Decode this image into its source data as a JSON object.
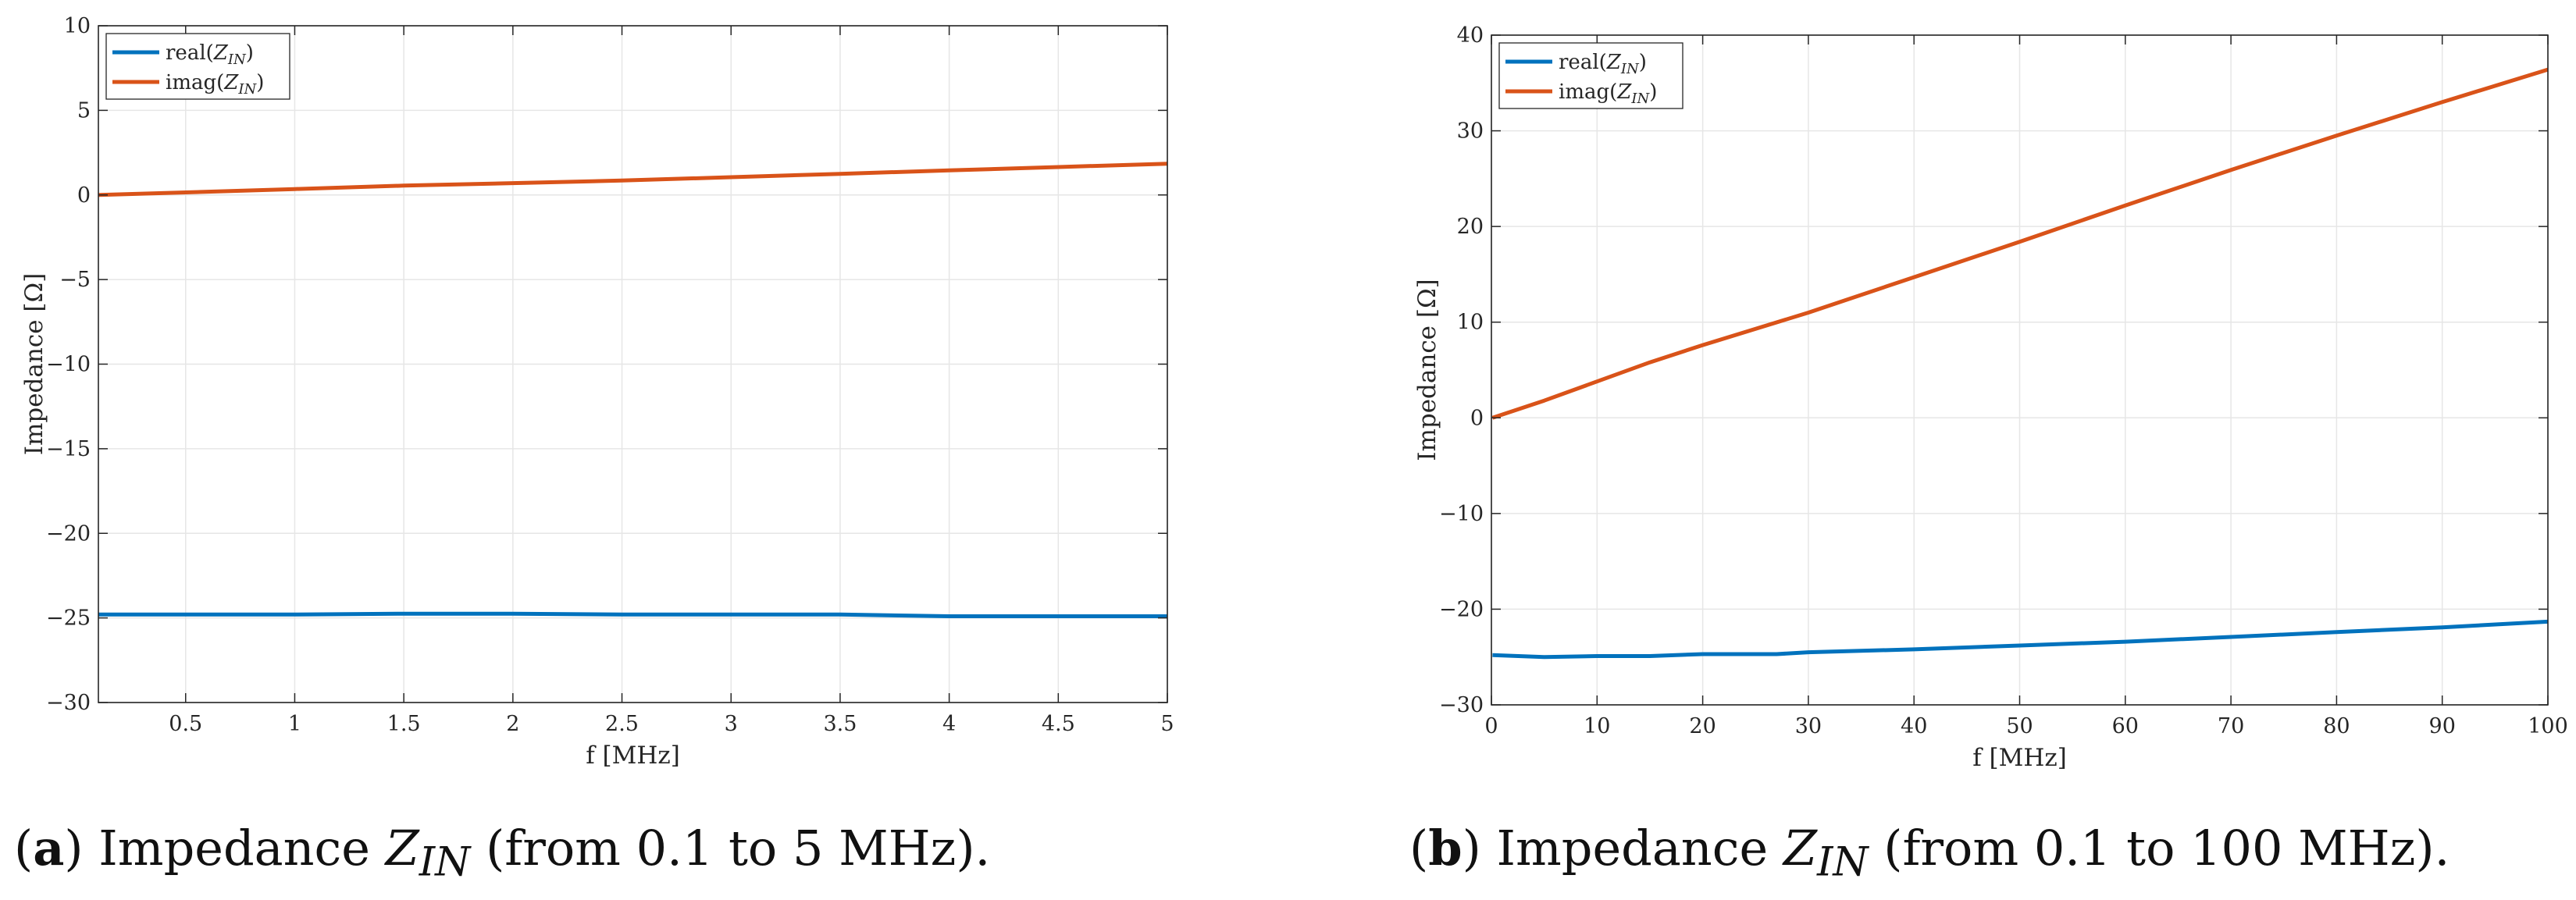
{
  "chart_data": [
    {
      "type": "line",
      "id": "a",
      "xlabel": "f [MHz]",
      "ylabel": "Impedance [Ω]",
      "xlim": [
        0.1,
        5
      ],
      "ylim": [
        -30,
        10
      ],
      "xticks": [
        0.5,
        1,
        1.5,
        2,
        2.5,
        3,
        3.5,
        4,
        4.5,
        5
      ],
      "xtick_labels": [
        "0.5",
        "1",
        "1.5",
        "2",
        "2.5",
        "3",
        "3.5",
        "4",
        "4.5",
        "5"
      ],
      "yticks": [
        -30,
        -25,
        -20,
        -15,
        -10,
        -5,
        0,
        5,
        10
      ],
      "ytick_labels": [
        "−30",
        "−25",
        "−20",
        "−15",
        "−10",
        "−5",
        "0",
        "5",
        "10"
      ],
      "grid": true,
      "legend_position": "top-left",
      "series": [
        {
          "name": "real(Z_IN)",
          "label_prefix": "real(",
          "label_var": "Z",
          "label_sub": "IN",
          "label_suffix": ")",
          "color": "#0072BD",
          "x": [
            0.1,
            0.5,
            1,
            1.5,
            2,
            2.5,
            3,
            3.5,
            4,
            4.5,
            5
          ],
          "y": [
            -24.8,
            -24.8,
            -24.8,
            -24.75,
            -24.75,
            -24.8,
            -24.8,
            -24.8,
            -24.9,
            -24.9,
            -24.9
          ]
        },
        {
          "name": "imag(Z_IN)",
          "label_prefix": "imag(",
          "label_var": "Z",
          "label_sub": "IN",
          "label_suffix": ")",
          "color": "#D95319",
          "x": [
            0.1,
            0.5,
            1,
            1.5,
            2,
            2.5,
            3,
            3.5,
            4,
            4.5,
            5
          ],
          "y": [
            0.0,
            0.15,
            0.35,
            0.55,
            0.7,
            0.85,
            1.05,
            1.25,
            1.45,
            1.65,
            1.85
          ]
        }
      ],
      "caption": {
        "letter": "a",
        "text_before": "Impedance ",
        "var": "Z",
        "sub": "IN",
        "text_after": " (from 0.1 to 5 MHz)."
      }
    },
    {
      "type": "line",
      "id": "b",
      "xlabel": "f [MHz]",
      "ylabel": "Impedance [Ω]",
      "xlim": [
        0,
        100
      ],
      "ylim": [
        -30,
        40
      ],
      "xticks": [
        0,
        10,
        20,
        30,
        40,
        50,
        60,
        70,
        80,
        90,
        100
      ],
      "xtick_labels": [
        "0",
        "10",
        "20",
        "30",
        "40",
        "50",
        "60",
        "70",
        "80",
        "90",
        "100"
      ],
      "yticks": [
        -30,
        -20,
        -10,
        0,
        10,
        20,
        30,
        40
      ],
      "ytick_labels": [
        "−30",
        "−20",
        "−10",
        "0",
        "10",
        "20",
        "30",
        "40"
      ],
      "grid": true,
      "legend_position": "top-left",
      "series": [
        {
          "name": "real(Z_IN)",
          "label_prefix": "real(",
          "label_var": "Z",
          "label_sub": "IN",
          "label_suffix": ")",
          "color": "#0072BD",
          "x": [
            0.1,
            5,
            10,
            15,
            20,
            27,
            30,
            40,
            50,
            60,
            70,
            80,
            90,
            100
          ],
          "y": [
            -24.8,
            -25.0,
            -24.9,
            -24.9,
            -24.7,
            -24.7,
            -24.5,
            -24.2,
            -23.8,
            -23.4,
            -22.9,
            -22.4,
            -21.9,
            -21.3
          ]
        },
        {
          "name": "imag(Z_IN)",
          "label_prefix": "imag(",
          "label_var": "Z",
          "label_sub": "IN",
          "label_suffix": ")",
          "color": "#D95319",
          "x": [
            0.1,
            5,
            10,
            15,
            20,
            30,
            40,
            50,
            60,
            70,
            80,
            90,
            100
          ],
          "y": [
            0.0,
            1.8,
            3.8,
            5.8,
            7.6,
            11.0,
            14.7,
            18.4,
            22.2,
            25.9,
            29.5,
            33.0,
            36.4
          ]
        }
      ],
      "caption": {
        "letter": "b",
        "text_before": "Impedance ",
        "var": "Z",
        "sub": "IN",
        "text_after": " (from 0.1 to 100 MHz)."
      }
    }
  ]
}
